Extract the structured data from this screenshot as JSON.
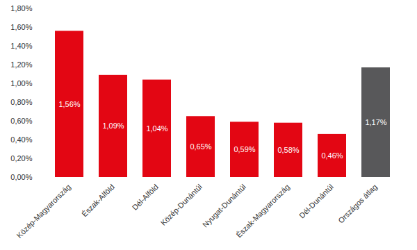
{
  "chart_data": {
    "type": "bar",
    "categories": [
      "Közép-Magyarország",
      "Észak-Alföld",
      "Dél-Alföld",
      "Közép-Dunántúl",
      "Nyugat-Dunántúl",
      "Észak-Magyarország",
      "Dél-Dunántúl",
      "Országos átlag"
    ],
    "values": [
      1.56,
      1.09,
      1.04,
      0.65,
      0.59,
      0.58,
      0.46,
      1.17
    ],
    "value_labels": [
      "1,56%",
      "1,09%",
      "1,04%",
      "0,65%",
      "0,59%",
      "0,58%",
      "0,46%",
      "1,17%"
    ],
    "colors": [
      "#e30613",
      "#e30613",
      "#e30613",
      "#e30613",
      "#e30613",
      "#e30613",
      "#e30613",
      "#58585a"
    ],
    "ylim": [
      0,
      1.8
    ],
    "yticks": [
      {
        "value": 0,
        "label": "0,00%"
      },
      {
        "value": 0.2,
        "label": "0,20%"
      },
      {
        "value": 0.4,
        "label": "0,40%"
      },
      {
        "value": 0.6,
        "label": "0,60%"
      },
      {
        "value": 0.8,
        "label": "0,80%"
      },
      {
        "value": 1.0,
        "label": "1,00%"
      },
      {
        "value": 1.2,
        "label": "1,20%"
      },
      {
        "value": 1.4,
        "label": "1,40%"
      },
      {
        "value": 1.6,
        "label": "1,60%"
      },
      {
        "value": 1.8,
        "label": "1,80%"
      }
    ],
    "grid": false,
    "data_labels": true
  }
}
